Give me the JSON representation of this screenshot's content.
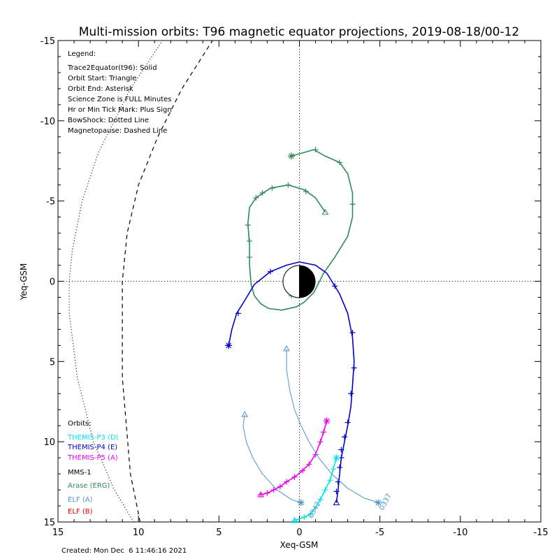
{
  "title": "Multi-mission orbits: T96 magnetic equator projections, 2019-08-18/00-12",
  "created": "Created: Mon Dec  6 11:46:16 2021",
  "legend_lines": [
    "Legend:",
    "Trace2Equator(t96): Solid",
    "Orbit Start: Triangle",
    "Orbit End: Asterisk",
    "Science Zone is FULL Minutes",
    "Hr or Min Tick Mark: Plus Sign",
    "BowShock: Dotted Line",
    "Magnetopause: Dashed Line"
  ],
  "orbits_heading": "Orbits:",
  "missions": [
    {
      "label": "THEMIS-P3 (D)",
      "color": "#00e5ee"
    },
    {
      "label": "THEMIS-P4 (E)",
      "color": "#0000cd"
    },
    {
      "label": "THEMIS-P5 (A)",
      "color": "#ee00ee"
    },
    {
      "label": "MMS-1",
      "color": "#000000"
    },
    {
      "label": "Arase (ERG)",
      "color": "#2e8b57"
    },
    {
      "label": "ELF (A)",
      "color": "#4f94cd"
    },
    {
      "label": "ELF (B)",
      "color": "#dd0000"
    }
  ],
  "chart_data": {
    "type": "scatter",
    "xlabel": "Xeq-GSM",
    "ylabel": "Yeq-GSM",
    "xlim": [
      15,
      -15
    ],
    "ylim": [
      -15,
      15
    ],
    "x_ticks": [
      15,
      10,
      5,
      0,
      -5,
      -10,
      -15
    ],
    "y_ticks": [
      -15,
      -10,
      -5,
      0,
      5,
      10,
      15
    ],
    "series": [
      {
        "name": "Arase (ERG)",
        "color": "#2e8b57",
        "points": [
          [
            -1.6,
            -4.3
          ],
          [
            -1.0,
            -5.2
          ],
          [
            -0.3,
            -5.7
          ],
          [
            0.7,
            -6.0
          ],
          [
            1.8,
            -5.8
          ],
          [
            2.7,
            -5.2
          ],
          [
            3.1,
            -4.6
          ],
          [
            3.2,
            -3.6
          ],
          [
            3.1,
            -2.2
          ],
          [
            3.1,
            -1.0
          ],
          [
            3.0,
            0.2
          ],
          [
            2.8,
            0.9
          ],
          [
            2.4,
            1.4
          ],
          [
            1.9,
            1.7
          ],
          [
            1.1,
            1.8
          ],
          [
            0.2,
            1.6
          ],
          [
            -0.3,
            1.3
          ],
          [
            -0.9,
            0.7
          ],
          [
            -1.5,
            -0.5
          ],
          [
            -2.2,
            -1.5
          ],
          [
            -3.0,
            -2.8
          ],
          [
            -3.3,
            -4.0
          ],
          [
            -3.3,
            -5.5
          ],
          [
            -3.0,
            -6.7
          ],
          [
            -2.5,
            -7.4
          ],
          [
            -1.6,
            -7.8
          ],
          [
            -0.9,
            -8.2
          ],
          [
            0.5,
            -7.8
          ]
        ],
        "ticks": [
          [
            -2.5,
            -7.4
          ],
          [
            -1.0,
            -8.2
          ],
          [
            -3.3,
            -4.8
          ],
          [
            -0.4,
            -5.6
          ],
          [
            0.7,
            -6.0
          ],
          [
            1.7,
            -5.8
          ],
          [
            2.3,
            -5.5
          ],
          [
            2.7,
            -5.2
          ],
          [
            3.2,
            -3.5
          ],
          [
            3.1,
            -2.5
          ],
          [
            3.1,
            -1.5
          ],
          [
            0.5,
            0.9
          ]
        ],
        "start_marker": [
          -1.6,
          -4.3
        ],
        "end_marker": [
          0.5,
          -7.8
        ]
      },
      {
        "name": "THEMIS-P4 (E)",
        "color": "#0000cd",
        "points": [
          [
            -2.3,
            13.8
          ],
          [
            -2.4,
            13.0
          ],
          [
            -2.5,
            12.0
          ],
          [
            -2.6,
            11.0
          ],
          [
            -2.8,
            10.0
          ],
          [
            -3.0,
            9.0
          ],
          [
            -3.2,
            7.8
          ],
          [
            -3.3,
            6.5
          ],
          [
            -3.4,
            5.0
          ],
          [
            -3.3,
            3.5
          ],
          [
            -3.0,
            2.0
          ],
          [
            -2.5,
            0.8
          ],
          [
            -2.2,
            0.3
          ],
          [
            -1.7,
            -0.5
          ],
          [
            -1.0,
            -1.0
          ],
          [
            0.0,
            -1.2
          ],
          [
            0.8,
            -1.0
          ],
          [
            1.8,
            -0.6
          ],
          [
            2.8,
            0.2
          ],
          [
            3.4,
            1.2
          ],
          [
            3.9,
            2.0
          ],
          [
            4.2,
            3.0
          ],
          [
            4.4,
            4.0
          ]
        ],
        "ticks": [
          [
            -2.3,
            13.1
          ],
          [
            -2.4,
            12.5
          ],
          [
            -2.5,
            11.6
          ],
          [
            -2.6,
            11.0
          ],
          [
            -2.6,
            10.5
          ],
          [
            -2.8,
            9.7
          ],
          [
            -3.0,
            8.8
          ],
          [
            -3.2,
            7.0
          ],
          [
            -3.4,
            5.4
          ],
          [
            -3.3,
            3.2
          ],
          [
            -2.2,
            0.3
          ],
          [
            1.8,
            -0.6
          ],
          [
            3.8,
            2.0
          ],
          [
            4.4,
            4.0
          ]
        ],
        "start_marker": [
          -2.3,
          13.8
        ],
        "end_marker": [
          4.4,
          4.0
        ]
      },
      {
        "name": "THEMIS-P5 (A)",
        "color": "#ee00ee",
        "points": [
          [
            2.4,
            13.3
          ],
          [
            2.0,
            13.2
          ],
          [
            1.6,
            13.0
          ],
          [
            1.2,
            12.8
          ],
          [
            0.8,
            12.5
          ],
          [
            0.3,
            12.2
          ],
          [
            -0.2,
            11.8
          ],
          [
            -0.6,
            11.4
          ],
          [
            -1.0,
            10.8
          ],
          [
            -1.3,
            10.0
          ],
          [
            -1.5,
            9.4
          ],
          [
            -1.7,
            8.7
          ]
        ],
        "ticks": [
          [
            2.4,
            13.3
          ],
          [
            2.0,
            13.2
          ],
          [
            1.6,
            13.0
          ],
          [
            1.2,
            12.8
          ],
          [
            0.8,
            12.5
          ],
          [
            0.3,
            12.2
          ],
          [
            -0.2,
            11.8
          ],
          [
            -0.6,
            11.4
          ],
          [
            -1.0,
            10.8
          ],
          [
            -1.3,
            10.0
          ],
          [
            -1.5,
            9.4
          ]
        ],
        "start_marker": [
          2.4,
          13.3
        ],
        "end_marker": [
          -1.7,
          8.7
        ]
      },
      {
        "name": "THEMIS-P3 (D)",
        "color": "#00e5ee",
        "points": [
          [
            0.3,
            14.9
          ],
          [
            -0.3,
            14.7
          ],
          [
            -0.7,
            14.5
          ],
          [
            -1.0,
            14.1
          ],
          [
            -1.3,
            13.6
          ],
          [
            -1.6,
            13.0
          ],
          [
            -1.9,
            12.4
          ],
          [
            -2.1,
            11.7
          ],
          [
            -2.3,
            11.0
          ]
        ],
        "ticks": [
          [
            0.3,
            14.9
          ],
          [
            -0.3,
            14.7
          ],
          [
            -0.7,
            14.5
          ],
          [
            -1.3,
            13.6
          ],
          [
            -1.6,
            13.0
          ],
          [
            -1.9,
            12.4
          ],
          [
            -2.1,
            11.7
          ]
        ],
        "start_marker": [
          0.3,
          14.9
        ],
        "end_marker": [
          -2.3,
          11.0
        ]
      },
      {
        "name": "ELF (A)",
        "color": "#4f94cd",
        "points": [
          [
            0.8,
            4.2
          ],
          [
            0.8,
            5.5
          ],
          [
            0.6,
            6.8
          ],
          [
            0.3,
            8.0
          ],
          [
            -0.1,
            9.0
          ],
          [
            -0.6,
            10.0
          ],
          [
            -1.2,
            11.0
          ],
          [
            -2.0,
            12.0
          ],
          [
            -3.0,
            12.9
          ],
          [
            -4.0,
            13.5
          ],
          [
            -4.9,
            13.8
          ]
        ],
        "ticks": [],
        "start_marker": [
          0.8,
          4.2
        ],
        "end_marker": [
          -4.9,
          13.8
        ],
        "annotation": "0337",
        "annotation_at": [
          -5.2,
          14.3
        ]
      },
      {
        "name": "ELF (A)",
        "color": "#4f94cd",
        "points": [
          [
            3.4,
            8.3
          ],
          [
            3.5,
            9.0
          ],
          [
            3.3,
            10.0
          ],
          [
            2.9,
            11.0
          ],
          [
            2.3,
            12.0
          ],
          [
            1.4,
            13.0
          ],
          [
            0.5,
            13.6
          ],
          [
            -0.1,
            13.8
          ]
        ],
        "ticks": [],
        "start_marker": [
          3.4,
          8.3
        ],
        "end_marker": [
          -0.1,
          13.8
        ],
        "annotation": "0342",
        "annotation_at": [
          -0.8,
          14.8
        ]
      }
    ],
    "magnetopause": {
      "style": "dashed",
      "points": [
        [
          9.9,
          15.0
        ],
        [
          10.5,
          12.0
        ],
        [
          11.0,
          6.0
        ],
        [
          11.0,
          0.0
        ],
        [
          10.7,
          -3.0
        ],
        [
          10.0,
          -6.0
        ],
        [
          8.8,
          -9.0
        ],
        [
          7.3,
          -12.0
        ],
        [
          5.4,
          -15.0
        ]
      ]
    },
    "bow_shock": {
      "style": "dotted",
      "points": [
        [
          10.3,
          15.0
        ],
        [
          11.5,
          13.0
        ],
        [
          12.8,
          10.0
        ],
        [
          13.8,
          6.0
        ],
        [
          14.3,
          2.0
        ],
        [
          14.3,
          0.0
        ],
        [
          14.1,
          -2.0
        ],
        [
          13.5,
          -5.0
        ],
        [
          12.5,
          -8.0
        ],
        [
          11.5,
          -10.0
        ],
        [
          10.5,
          -12.0
        ],
        [
          9.5,
          -13.5
        ],
        [
          8.5,
          -15.0
        ]
      ]
    },
    "earth": {
      "radius": 1
    }
  }
}
